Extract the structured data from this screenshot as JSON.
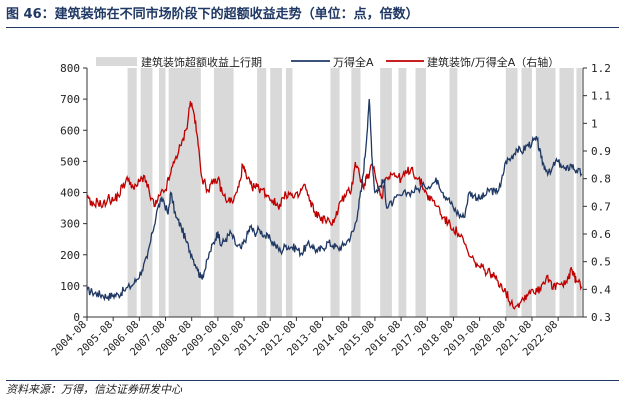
{
  "title": "图 46：建筑装饰在不同市场阶段下的超额收益走势（单位：点，倍数）",
  "source": "资料来源：万得，信达证券研发中心",
  "colors": {
    "primary": "#1f3864",
    "secondary": "#c00000",
    "shade": "#d9d9d9"
  },
  "chart_data": {
    "type": "line",
    "x_tick_labels": [
      "2004-08",
      "2005-08",
      "2006-08",
      "2007-08",
      "2008-08",
      "2009-08",
      "2010-08",
      "2011-08",
      "2012-08",
      "2013-08",
      "2014-08",
      "2015-08",
      "2016-08",
      "2017-08",
      "2018-08",
      "2019-08",
      "2020-08",
      "2021-08",
      "2022-08"
    ],
    "x_range": [
      2004.6,
      2023.55
    ],
    "y_left": {
      "min": 0,
      "max": 800,
      "ticks": [
        "0",
        "100",
        "200",
        "300",
        "400",
        "500",
        "600",
        "700",
        "800"
      ]
    },
    "y_right": {
      "min": 0.3,
      "max": 1.2,
      "ticks": [
        "0.3",
        "0.4",
        "0.5",
        "0.6",
        "0.7",
        "0.8",
        "0.9",
        "1",
        "1.1",
        "1.2"
      ]
    },
    "legend": [
      "建筑装饰超额收益上行期",
      "万得全A",
      "建筑装饰/万得全A（右轴）"
    ],
    "shaded_periods": [
      [
        2006.15,
        2006.5
      ],
      [
        2006.65,
        2007.1
      ],
      [
        2007.35,
        2007.6
      ],
      [
        2007.72,
        2008.95
      ],
      [
        2009.45,
        2010.2
      ],
      [
        2011.1,
        2011.45
      ],
      [
        2011.6,
        2012.05
      ],
      [
        2012.2,
        2012.45
      ],
      [
        2013.9,
        2014.25
      ],
      [
        2014.7,
        2015.05
      ],
      [
        2015.8,
        2016.25
      ],
      [
        2016.5,
        2016.8
      ],
      [
        2017.15,
        2017.55
      ],
      [
        2018.45,
        2018.75
      ],
      [
        2020.6,
        2021.05
      ],
      [
        2021.2,
        2021.6
      ],
      [
        2021.75,
        2022.5
      ],
      [
        2022.65,
        2023.2
      ],
      [
        2023.3,
        2023.5
      ]
    ],
    "series": [
      {
        "name": "万得全A",
        "axis": "left",
        "points": [
          [
            2004.6,
            85
          ],
          [
            2004.8,
            80
          ],
          [
            2005.0,
            75
          ],
          [
            2005.2,
            70
          ],
          [
            2005.4,
            65
          ],
          [
            2005.6,
            70
          ],
          [
            2005.8,
            72
          ],
          [
            2006.0,
            85
          ],
          [
            2006.3,
            100
          ],
          [
            2006.5,
            120
          ],
          [
            2006.7,
            150
          ],
          [
            2006.9,
            190
          ],
          [
            2007.1,
            270
          ],
          [
            2007.3,
            350
          ],
          [
            2007.5,
            380
          ],
          [
            2007.7,
            330
          ],
          [
            2007.8,
            400
          ],
          [
            2008.0,
            320
          ],
          [
            2008.2,
            290
          ],
          [
            2008.4,
            240
          ],
          [
            2008.6,
            200
          ],
          [
            2008.8,
            160
          ],
          [
            2008.95,
            125
          ],
          [
            2009.1,
            150
          ],
          [
            2009.3,
            210
          ],
          [
            2009.5,
            250
          ],
          [
            2009.6,
            275
          ],
          [
            2009.7,
            230
          ],
          [
            2009.9,
            250
          ],
          [
            2010.1,
            270
          ],
          [
            2010.3,
            230
          ],
          [
            2010.5,
            220
          ],
          [
            2010.7,
            260
          ],
          [
            2010.85,
            290
          ],
          [
            2011.0,
            270
          ],
          [
            2011.2,
            280
          ],
          [
            2011.4,
            260
          ],
          [
            2011.6,
            250
          ],
          [
            2011.8,
            230
          ],
          [
            2012.0,
            210
          ],
          [
            2012.2,
            230
          ],
          [
            2012.4,
            225
          ],
          [
            2012.6,
            220
          ],
          [
            2012.8,
            205
          ],
          [
            2013.0,
            230
          ],
          [
            2013.2,
            230
          ],
          [
            2013.4,
            210
          ],
          [
            2013.6,
            220
          ],
          [
            2013.8,
            240
          ],
          [
            2014.0,
            230
          ],
          [
            2014.2,
            220
          ],
          [
            2014.4,
            230
          ],
          [
            2014.6,
            250
          ],
          [
            2014.8,
            280
          ],
          [
            2014.95,
            340
          ],
          [
            2015.1,
            420
          ],
          [
            2015.25,
            540
          ],
          [
            2015.38,
            700
          ],
          [
            2015.5,
            500
          ],
          [
            2015.6,
            400
          ],
          [
            2015.8,
            420
          ],
          [
            2015.95,
            440
          ],
          [
            2016.05,
            350
          ],
          [
            2016.3,
            370
          ],
          [
            2016.6,
            390
          ],
          [
            2016.9,
            400
          ],
          [
            2017.2,
            410
          ],
          [
            2017.5,
            420
          ],
          [
            2017.8,
            430
          ],
          [
            2018.0,
            440
          ],
          [
            2018.2,
            400
          ],
          [
            2018.4,
            380
          ],
          [
            2018.6,
            350
          ],
          [
            2018.8,
            330
          ],
          [
            2019.0,
            320
          ],
          [
            2019.2,
            400
          ],
          [
            2019.4,
            390
          ],
          [
            2019.6,
            380
          ],
          [
            2019.8,
            390
          ],
          [
            2020.0,
            410
          ],
          [
            2020.2,
            400
          ],
          [
            2020.4,
            420
          ],
          [
            2020.6,
            500
          ],
          [
            2020.8,
            510
          ],
          [
            2021.0,
            540
          ],
          [
            2021.2,
            530
          ],
          [
            2021.4,
            550
          ],
          [
            2021.6,
            560
          ],
          [
            2021.8,
            570
          ],
          [
            2021.95,
            510
          ],
          [
            2022.1,
            480
          ],
          [
            2022.3,
            460
          ],
          [
            2022.5,
            500
          ],
          [
            2022.7,
            490
          ],
          [
            2022.9,
            470
          ],
          [
            2023.1,
            490
          ],
          [
            2023.3,
            470
          ],
          [
            2023.5,
            460
          ]
        ]
      },
      {
        "name": "建筑装饰/万得全A（右轴）",
        "axis": "right",
        "points": [
          [
            2004.6,
            0.73
          ],
          [
            2004.8,
            0.7
          ],
          [
            2005.0,
            0.72
          ],
          [
            2005.2,
            0.7
          ],
          [
            2005.4,
            0.73
          ],
          [
            2005.6,
            0.72
          ],
          [
            2005.8,
            0.74
          ],
          [
            2006.0,
            0.78
          ],
          [
            2006.2,
            0.8
          ],
          [
            2006.4,
            0.76
          ],
          [
            2006.6,
            0.79
          ],
          [
            2006.8,
            0.81
          ],
          [
            2007.0,
            0.74
          ],
          [
            2007.2,
            0.7
          ],
          [
            2007.4,
            0.74
          ],
          [
            2007.6,
            0.76
          ],
          [
            2007.8,
            0.82
          ],
          [
            2008.0,
            0.88
          ],
          [
            2008.2,
            0.92
          ],
          [
            2008.4,
            0.98
          ],
          [
            2008.55,
            1.08
          ],
          [
            2008.7,
            1.03
          ],
          [
            2008.85,
            0.92
          ],
          [
            2009.0,
            0.8
          ],
          [
            2009.2,
            0.76
          ],
          [
            2009.4,
            0.78
          ],
          [
            2009.6,
            0.8
          ],
          [
            2009.8,
            0.74
          ],
          [
            2010.0,
            0.72
          ],
          [
            2010.2,
            0.72
          ],
          [
            2010.4,
            0.77
          ],
          [
            2010.55,
            0.85
          ],
          [
            2010.7,
            0.8
          ],
          [
            2010.9,
            0.77
          ],
          [
            2011.1,
            0.77
          ],
          [
            2011.3,
            0.76
          ],
          [
            2011.5,
            0.74
          ],
          [
            2011.7,
            0.72
          ],
          [
            2011.9,
            0.7
          ],
          [
            2012.1,
            0.73
          ],
          [
            2012.3,
            0.75
          ],
          [
            2012.5,
            0.73
          ],
          [
            2012.7,
            0.74
          ],
          [
            2012.9,
            0.78
          ],
          [
            2013.1,
            0.72
          ],
          [
            2013.3,
            0.68
          ],
          [
            2013.5,
            0.66
          ],
          [
            2013.7,
            0.65
          ],
          [
            2013.9,
            0.64
          ],
          [
            2014.1,
            0.66
          ],
          [
            2014.3,
            0.72
          ],
          [
            2014.5,
            0.74
          ],
          [
            2014.7,
            0.76
          ],
          [
            2014.85,
            0.86
          ],
          [
            2015.0,
            0.82
          ],
          [
            2015.15,
            0.77
          ],
          [
            2015.3,
            0.8
          ],
          [
            2015.5,
            0.85
          ],
          [
            2015.7,
            0.78
          ],
          [
            2015.85,
            0.73
          ],
          [
            2016.0,
            0.8
          ],
          [
            2016.2,
            0.82
          ],
          [
            2016.4,
            0.81
          ],
          [
            2016.6,
            0.8
          ],
          [
            2016.8,
            0.82
          ],
          [
            2017.0,
            0.84
          ],
          [
            2017.2,
            0.8
          ],
          [
            2017.4,
            0.78
          ],
          [
            2017.6,
            0.74
          ],
          [
            2017.8,
            0.72
          ],
          [
            2018.0,
            0.7
          ],
          [
            2018.2,
            0.66
          ],
          [
            2018.4,
            0.64
          ],
          [
            2018.6,
            0.62
          ],
          [
            2018.8,
            0.6
          ],
          [
            2019.0,
            0.57
          ],
          [
            2019.2,
            0.52
          ],
          [
            2019.4,
            0.5
          ],
          [
            2019.6,
            0.48
          ],
          [
            2019.8,
            0.47
          ],
          [
            2020.0,
            0.46
          ],
          [
            2020.2,
            0.44
          ],
          [
            2020.4,
            0.42
          ],
          [
            2020.6,
            0.39
          ],
          [
            2020.8,
            0.35
          ],
          [
            2021.0,
            0.34
          ],
          [
            2021.2,
            0.36
          ],
          [
            2021.4,
            0.38
          ],
          [
            2021.6,
            0.4
          ],
          [
            2021.8,
            0.39
          ],
          [
            2022.0,
            0.42
          ],
          [
            2022.2,
            0.45
          ],
          [
            2022.4,
            0.4
          ],
          [
            2022.6,
            0.42
          ],
          [
            2022.8,
            0.41
          ],
          [
            2023.0,
            0.44
          ],
          [
            2023.1,
            0.48
          ],
          [
            2023.2,
            0.45
          ],
          [
            2023.3,
            0.43
          ],
          [
            2023.5,
            0.41
          ]
        ]
      }
    ]
  }
}
